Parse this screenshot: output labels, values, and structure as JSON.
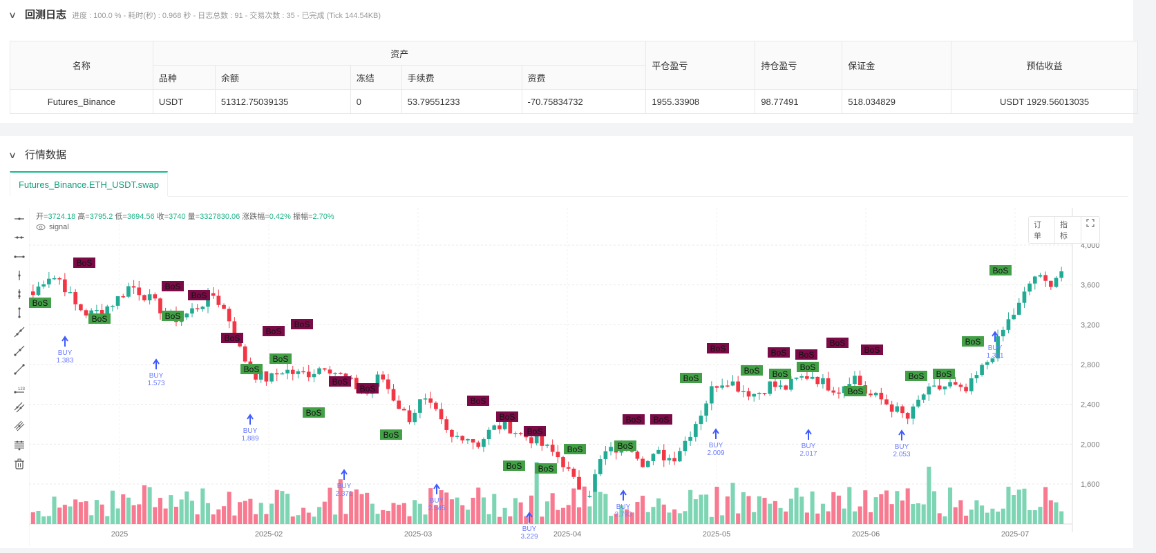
{
  "log": {
    "title": "回测日志",
    "subtitle": "进度 : 100.0 % - 耗时(秒) :  0.968  秒 - 日志总数 : 91 - 交易次数 : 35 - 已完成 (Tick 144.54KB)"
  },
  "assets_table": {
    "headers": {
      "name": "名称",
      "assets_group": "资产",
      "symbol": "品种",
      "balance": "余额",
      "frozen": "冻结",
      "fee": "手续费",
      "funding": "资费",
      "closed_pnl": "平仓盈亏",
      "position_pnl": "持仓盈亏",
      "margin": "保证金",
      "est_profit": "预估收益"
    },
    "rows": [
      {
        "name": "Futures_Binance",
        "symbol": "USDT",
        "balance": "51312.75039135",
        "frozen": "0",
        "fee": "53.79551233",
        "funding": "-70.75834732",
        "closed_pnl": "1955.33908",
        "position_pnl": "98.77491",
        "margin": "518.034829",
        "est_profit": "USDT 1929.56013035"
      }
    ]
  },
  "market": {
    "title": "行情数据",
    "tab": "Futures_Binance.ETH_USDT.swap",
    "ohlc": {
      "open_label": "开=",
      "open": "3724.18",
      "high_label": "高=",
      "high": "3795.2",
      "low_label": "低=",
      "low": "3694.56",
      "close_label": "收=",
      "close": "3740",
      "vol_label": "量=",
      "vol": "3327830.06",
      "chg_label": "涨跌幅=",
      "chg": "0.42%",
      "amp_label": "振幅=",
      "amp": "2.70%"
    },
    "signal_label": "signal",
    "buttons": {
      "orders": "订单",
      "indicators": "指标"
    },
    "toolbar_icons": [
      "horizontal-ray-icon",
      "horizontal-line-icon",
      "horizontal-segment-icon",
      "vertical-ray-icon",
      "vertical-segment-icon",
      "vertical-line-icon",
      "ray-icon",
      "segment-icon",
      "trend-line-icon",
      "price-line-icon",
      "parallel-channel-icon",
      "multi-line-icon",
      "fib-lines-icon",
      "trash-icon"
    ]
  },
  "colors": {
    "up": "#22ab94",
    "down": "#f23645",
    "vol_up": "#7dd5b4",
    "vol_down": "#f77a90",
    "bos_bear": "#7b0b47",
    "bos_bull": "#43a047",
    "buy": "#3d5afe",
    "accent": "#10b98e"
  },
  "chart_data": {
    "type": "candlestick",
    "title": "Futures_Binance.ETH_USDT.swap",
    "x_ticks": [
      "2025",
      "2025-02",
      "2025-03",
      "2025-04",
      "2025-05",
      "2025-06",
      "2025-07"
    ],
    "y_ticks": [
      "4,000.00",
      "3,600.00",
      "3,200.00",
      "2,800.00",
      "2,400.00",
      "2,000.00",
      "1,600.00"
    ],
    "ylim": [
      1250,
      4200
    ],
    "series_close_approx": [
      3500,
      3700,
      3650,
      3400,
      3300,
      3350,
      3450,
      3600,
      3500,
      3380,
      3250,
      3300,
      3400,
      3500,
      3300,
      2900,
      2700,
      2650,
      2750,
      2700,
      2720,
      2800,
      2700,
      2600,
      2500,
      2700,
      2450,
      2250,
      2450,
      2300,
      2050,
      2100,
      2000,
      2150,
      2200,
      2100,
      2050,
      1950,
      1850,
      1600,
      1500,
      1900,
      1950,
      2000,
      1800,
      1900,
      1850,
      2050,
      2300,
      2600,
      2650,
      2550,
      2500,
      2600,
      2550,
      2650,
      2700,
      2600,
      2550,
      2700,
      2500,
      2450,
      2350,
      2250,
      2500,
      2550,
      2600,
      2500,
      2700,
      2900,
      3200,
      3400,
      3700,
      3600,
      3740
    ],
    "annotations": {
      "buy_signals": [
        "1.383",
        "1.573",
        "1.889",
        "2.371",
        "2.545",
        "3.229",
        "2.793",
        "2.009",
        "2.017",
        "2.053",
        "1.391"
      ],
      "bos_labels": "BoS"
    }
  }
}
